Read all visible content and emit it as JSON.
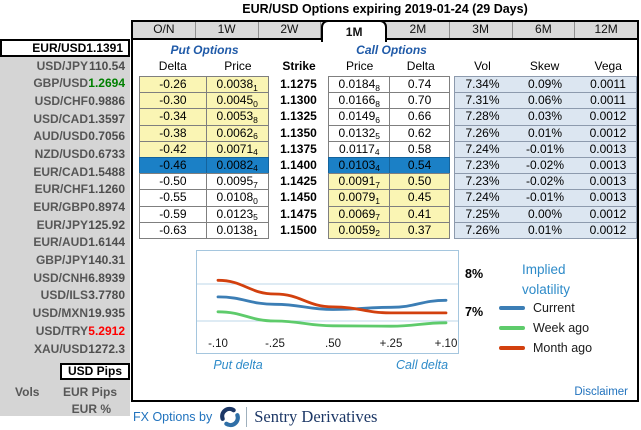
{
  "title": "EUR/USD Options expiring 2019-01-24 (29 Days)",
  "tabs": {
    "items": [
      "O/N",
      "1W",
      "2W",
      "1M",
      "2M",
      "3M",
      "6M",
      "12M"
    ],
    "active": "1M"
  },
  "sidebar": {
    "pairs": [
      {
        "pair": "EUR/USD",
        "rate": "1.1391",
        "selected": true
      },
      {
        "pair": "USD/JPY",
        "rate": "110.54"
      },
      {
        "pair": "GBP/USD",
        "rate": "1.2694",
        "rate_color": "#008000"
      },
      {
        "pair": "USD/CHF",
        "rate": "0.9886"
      },
      {
        "pair": "USD/CAD",
        "rate": "1.3597"
      },
      {
        "pair": "AUD/USD",
        "rate": "0.7056"
      },
      {
        "pair": "NZD/USD",
        "rate": "0.6733"
      },
      {
        "pair": "EUR/CAD",
        "rate": "1.5488"
      },
      {
        "pair": "EUR/CHF",
        "rate": "1.1260"
      },
      {
        "pair": "EUR/GBP",
        "rate": "0.8974"
      },
      {
        "pair": "EUR/JPY",
        "rate": "125.92"
      },
      {
        "pair": "EUR/AUD",
        "rate": "1.6144"
      },
      {
        "pair": "GBP/JPY",
        "rate": "140.31"
      },
      {
        "pair": "USD/CNH",
        "rate": "6.8939"
      },
      {
        "pair": "USD/ILS",
        "rate": "3.7780"
      },
      {
        "pair": "USD/MXN",
        "rate": "19.935"
      },
      {
        "pair": "USD/TRY",
        "rate": "5.2912",
        "rate_color": "#ff0000"
      },
      {
        "pair": "XAU/USD",
        "rate": "1272.3"
      }
    ],
    "vols_label": "Vols",
    "pip_modes": [
      "USD Pips",
      "EUR Pips",
      "EUR %"
    ],
    "pip_mode_selected": "USD Pips"
  },
  "table": {
    "put_header": "Put Options",
    "call_header": "Call Options",
    "columns": {
      "put_delta": "Delta",
      "put_price": "Price",
      "strike": "Strike",
      "call_price": "Price",
      "call_delta": "Delta",
      "vol": "Vol",
      "skew": "Skew",
      "vega": "Vega"
    },
    "rows": [
      {
        "put_delta": "-0.26",
        "put_price": "0.0038",
        "put_price_sub": "1",
        "strike": "1.1275",
        "call_price": "0.0184",
        "call_price_sub": "8",
        "call_delta": "0.74",
        "vol": "7.34%",
        "skew": "0.09%",
        "vega": "0.0011",
        "atm": false
      },
      {
        "put_delta": "-0.30",
        "put_price": "0.0045",
        "put_price_sub": "0",
        "strike": "1.1300",
        "call_price": "0.0166",
        "call_price_sub": "8",
        "call_delta": "0.70",
        "vol": "7.31%",
        "skew": "0.06%",
        "vega": "0.0011",
        "atm": false
      },
      {
        "put_delta": "-0.34",
        "put_price": "0.0053",
        "put_price_sub": "8",
        "strike": "1.1325",
        "call_price": "0.0149",
        "call_price_sub": "6",
        "call_delta": "0.66",
        "vol": "7.28%",
        "skew": "0.03%",
        "vega": "0.0012",
        "atm": false
      },
      {
        "put_delta": "-0.38",
        "put_price": "0.0062",
        "put_price_sub": "6",
        "strike": "1.1350",
        "call_price": "0.0132",
        "call_price_sub": "5",
        "call_delta": "0.62",
        "vol": "7.26%",
        "skew": "0.01%",
        "vega": "0.0012",
        "atm": false
      },
      {
        "put_delta": "-0.42",
        "put_price": "0.0071",
        "put_price_sub": "4",
        "strike": "1.1375",
        "call_price": "0.0117",
        "call_price_sub": "4",
        "call_delta": "0.58",
        "vol": "7.24%",
        "skew": "-0.01%",
        "vega": "0.0013",
        "atm": false
      },
      {
        "put_delta": "-0.46",
        "put_price": "0.0082",
        "put_price_sub": "4",
        "strike": "1.1400",
        "call_price": "0.0103",
        "call_price_sub": "4",
        "call_delta": "0.54",
        "vol": "7.23%",
        "skew": "-0.02%",
        "vega": "0.0013",
        "atm": true
      },
      {
        "put_delta": "-0.50",
        "put_price": "0.0095",
        "put_price_sub": "7",
        "strike": "1.1425",
        "call_price": "0.0091",
        "call_price_sub": "7",
        "call_delta": "0.50",
        "vol": "7.23%",
        "skew": "-0.02%",
        "vega": "0.0013",
        "atm": false
      },
      {
        "put_delta": "-0.55",
        "put_price": "0.0108",
        "put_price_sub": "0",
        "strike": "1.1450",
        "call_price": "0.0079",
        "call_price_sub": "1",
        "call_delta": "0.45",
        "vol": "7.24%",
        "skew": "-0.01%",
        "vega": "0.0013",
        "atm": false
      },
      {
        "put_delta": "-0.59",
        "put_price": "0.0123",
        "put_price_sub": "5",
        "strike": "1.1475",
        "call_price": "0.0069",
        "call_price_sub": "7",
        "call_delta": "0.41",
        "vol": "7.25%",
        "skew": "0.00%",
        "vega": "0.0012",
        "atm": false
      },
      {
        "put_delta": "-0.63",
        "put_price": "0.0138",
        "put_price_sub": "1",
        "strike": "1.1500",
        "call_price": "0.0059",
        "call_price_sub": "2",
        "call_delta": "0.37",
        "vol": "7.26%",
        "skew": "0.01%",
        "vega": "0.0012",
        "atm": false
      }
    ]
  },
  "chart_data": {
    "type": "line",
    "title": "Implied volatility",
    "legend_title": [
      "Implied",
      "volatility"
    ],
    "x": [
      "-.10",
      "-.25",
      ".50",
      "+.25",
      "+.10"
    ],
    "axis_labels": {
      "left": "Put delta",
      "right": "Call delta"
    },
    "y_ticks": [
      "8%",
      "7%"
    ],
    "ylim": [
      6.6,
      8.4
    ],
    "gridlines": [
      8,
      7
    ],
    "legend_position": "right",
    "series": [
      {
        "name": "Current",
        "color": "#3c7eb5",
        "values": [
          7.65,
          7.45,
          7.31,
          7.37,
          7.56
        ]
      },
      {
        "name": "Week ago",
        "color": "#5ecb6b",
        "values": [
          7.25,
          7.0,
          6.87,
          6.86,
          6.95
        ]
      },
      {
        "name": "Month ago",
        "color": "#d2400e",
        "values": [
          8.1,
          7.73,
          7.38,
          7.22,
          7.22
        ]
      }
    ]
  },
  "footer": {
    "fx_by": "FX Options by",
    "brand": "Sentry Derivatives",
    "disclaimer": "Disclaimer"
  }
}
